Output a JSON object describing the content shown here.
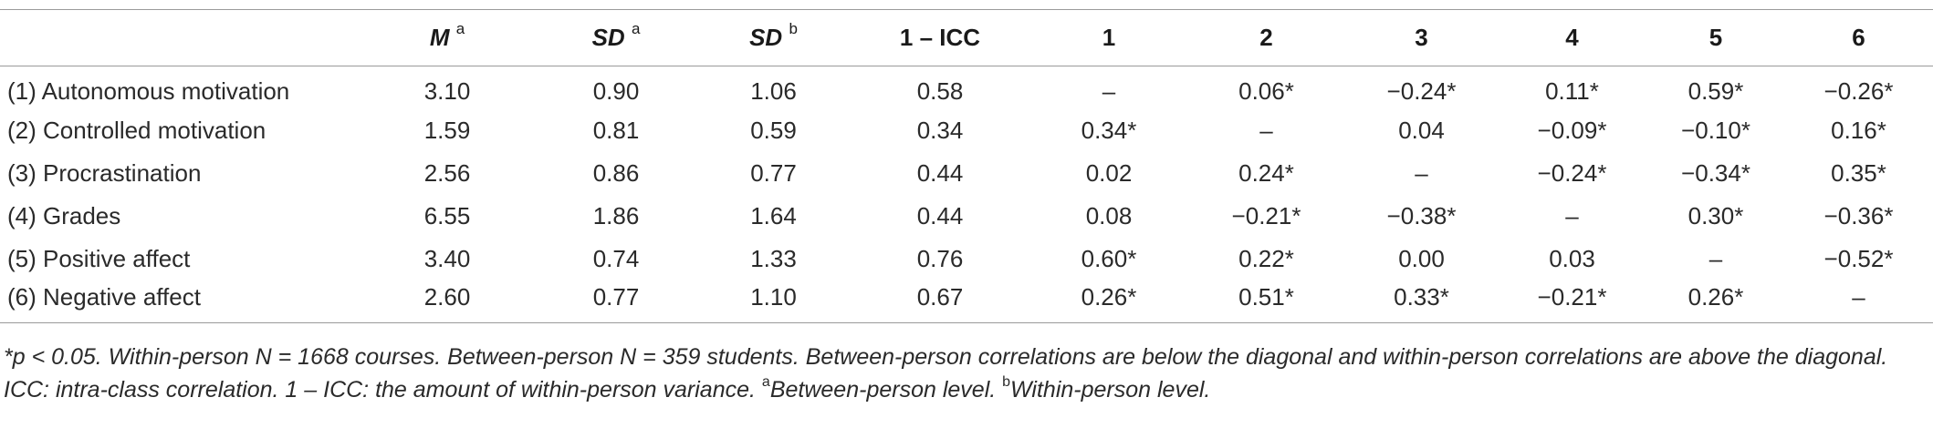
{
  "table": {
    "headers": [
      {
        "main": "",
        "sup": ""
      },
      {
        "main": "M",
        "sup": "a"
      },
      {
        "main": "SD",
        "sup": "a"
      },
      {
        "main": "SD",
        "sup": "b"
      },
      {
        "main": "1 – ICC",
        "sup": ""
      },
      {
        "main": "1",
        "sup": ""
      },
      {
        "main": "2",
        "sup": ""
      },
      {
        "main": "3",
        "sup": ""
      },
      {
        "main": "4",
        "sup": ""
      },
      {
        "main": "5",
        "sup": ""
      },
      {
        "main": "6",
        "sup": ""
      }
    ],
    "rows": [
      {
        "label": "(1) Autonomous motivation",
        "cells": [
          "3.10",
          "0.90",
          "1.06",
          "0.58",
          "–",
          "0.06*",
          "−0.24*",
          "0.11*",
          "0.59*",
          "−0.26*"
        ]
      },
      {
        "label": "(2) Controlled motivation",
        "cells": [
          "1.59",
          "0.81",
          "0.59",
          "0.34",
          "0.34*",
          "–",
          "0.04",
          "−0.09*",
          "−0.10*",
          "0.16*"
        ]
      },
      {
        "label": "(3) Procrastination",
        "cells": [
          "2.56",
          "0.86",
          "0.77",
          "0.44",
          "0.02",
          "0.24*",
          "–",
          "−0.24*",
          "−0.34*",
          "0.35*"
        ]
      },
      {
        "label": "(4) Grades",
        "cells": [
          "6.55",
          "1.86",
          "1.64",
          "0.44",
          "0.08",
          "−0.21*",
          "−0.38*",
          "–",
          "0.30*",
          "−0.36*"
        ]
      },
      {
        "label": "(5) Positive affect",
        "cells": [
          "3.40",
          "0.74",
          "1.33",
          "0.76",
          "0.60*",
          "0.22*",
          "0.00",
          "0.03",
          "–",
          "−0.52*"
        ]
      },
      {
        "label": "(6) Negative affect",
        "cells": [
          "2.60",
          "0.77",
          "1.10",
          "0.67",
          "0.26*",
          "0.51*",
          "0.33*",
          "−0.21*",
          "0.26*",
          "–"
        ]
      }
    ]
  },
  "note": {
    "main": "*p < 0.05. Within-person N = 1668 courses. Between-person N = 359 students. Between-person correlations are below the diagonal and within-person correlations are above the diagonal. ICC: intra-class correlation. 1 – ICC: the amount of within-person variance. ",
    "sup_a": "a",
    "text_a": "Between-person level. ",
    "sup_b": "b",
    "text_b": "Within-person level."
  }
}
